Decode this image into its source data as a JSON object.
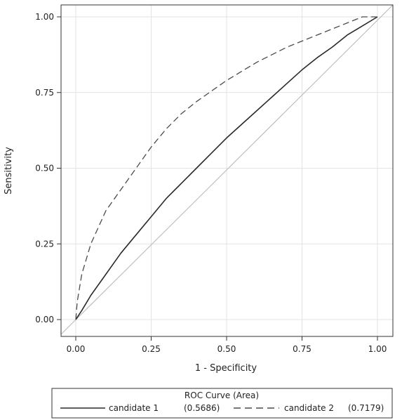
{
  "chart_data": {
    "type": "line",
    "xlabel": "1 - Specificity",
    "ylabel": "Sensitivity",
    "xlim": [
      0,
      1
    ],
    "ylim": [
      0,
      1
    ],
    "x_ticks": [
      "0.00",
      "0.25",
      "0.50",
      "0.75",
      "1.00"
    ],
    "y_ticks": [
      "0.00",
      "0.25",
      "0.50",
      "0.75",
      "1.00"
    ],
    "grid": true,
    "legend_position": "bottom",
    "legend": {
      "title": "ROC Curve (Area)",
      "entries": [
        {
          "label": "candidate 1",
          "value": "(0.5686)",
          "style": "solid"
        },
        {
          "label": "candidate 2",
          "value": "(0.7179)",
          "style": "dashed"
        }
      ]
    },
    "reference_line": {
      "x": [
        0,
        1
      ],
      "y": [
        0,
        1
      ],
      "color": "#b5b5b5"
    },
    "series": [
      {
        "name": "candidate 1",
        "style": "solid",
        "color": "#2a2a2a",
        "x": [
          0,
          0.02,
          0.05,
          0.1,
          0.15,
          0.2,
          0.25,
          0.3,
          0.35,
          0.4,
          0.45,
          0.5,
          0.55,
          0.6,
          0.65,
          0.7,
          0.75,
          0.8,
          0.85,
          0.9,
          0.95,
          1.0
        ],
        "y": [
          0,
          0.03,
          0.08,
          0.15,
          0.22,
          0.28,
          0.34,
          0.4,
          0.45,
          0.5,
          0.55,
          0.6,
          0.645,
          0.69,
          0.735,
          0.78,
          0.825,
          0.865,
          0.9,
          0.94,
          0.97,
          1.0
        ]
      },
      {
        "name": "candidate 2",
        "style": "dashed",
        "color": "#4a4a4a",
        "x": [
          0,
          0.005,
          0.02,
          0.05,
          0.1,
          0.15,
          0.2,
          0.25,
          0.3,
          0.35,
          0.4,
          0.5,
          0.6,
          0.7,
          0.8,
          0.9,
          0.95,
          1.0
        ],
        "y": [
          0,
          0.06,
          0.15,
          0.25,
          0.36,
          0.43,
          0.5,
          0.57,
          0.63,
          0.68,
          0.72,
          0.79,
          0.85,
          0.9,
          0.94,
          0.98,
          1.0,
          1.0
        ]
      }
    ]
  }
}
